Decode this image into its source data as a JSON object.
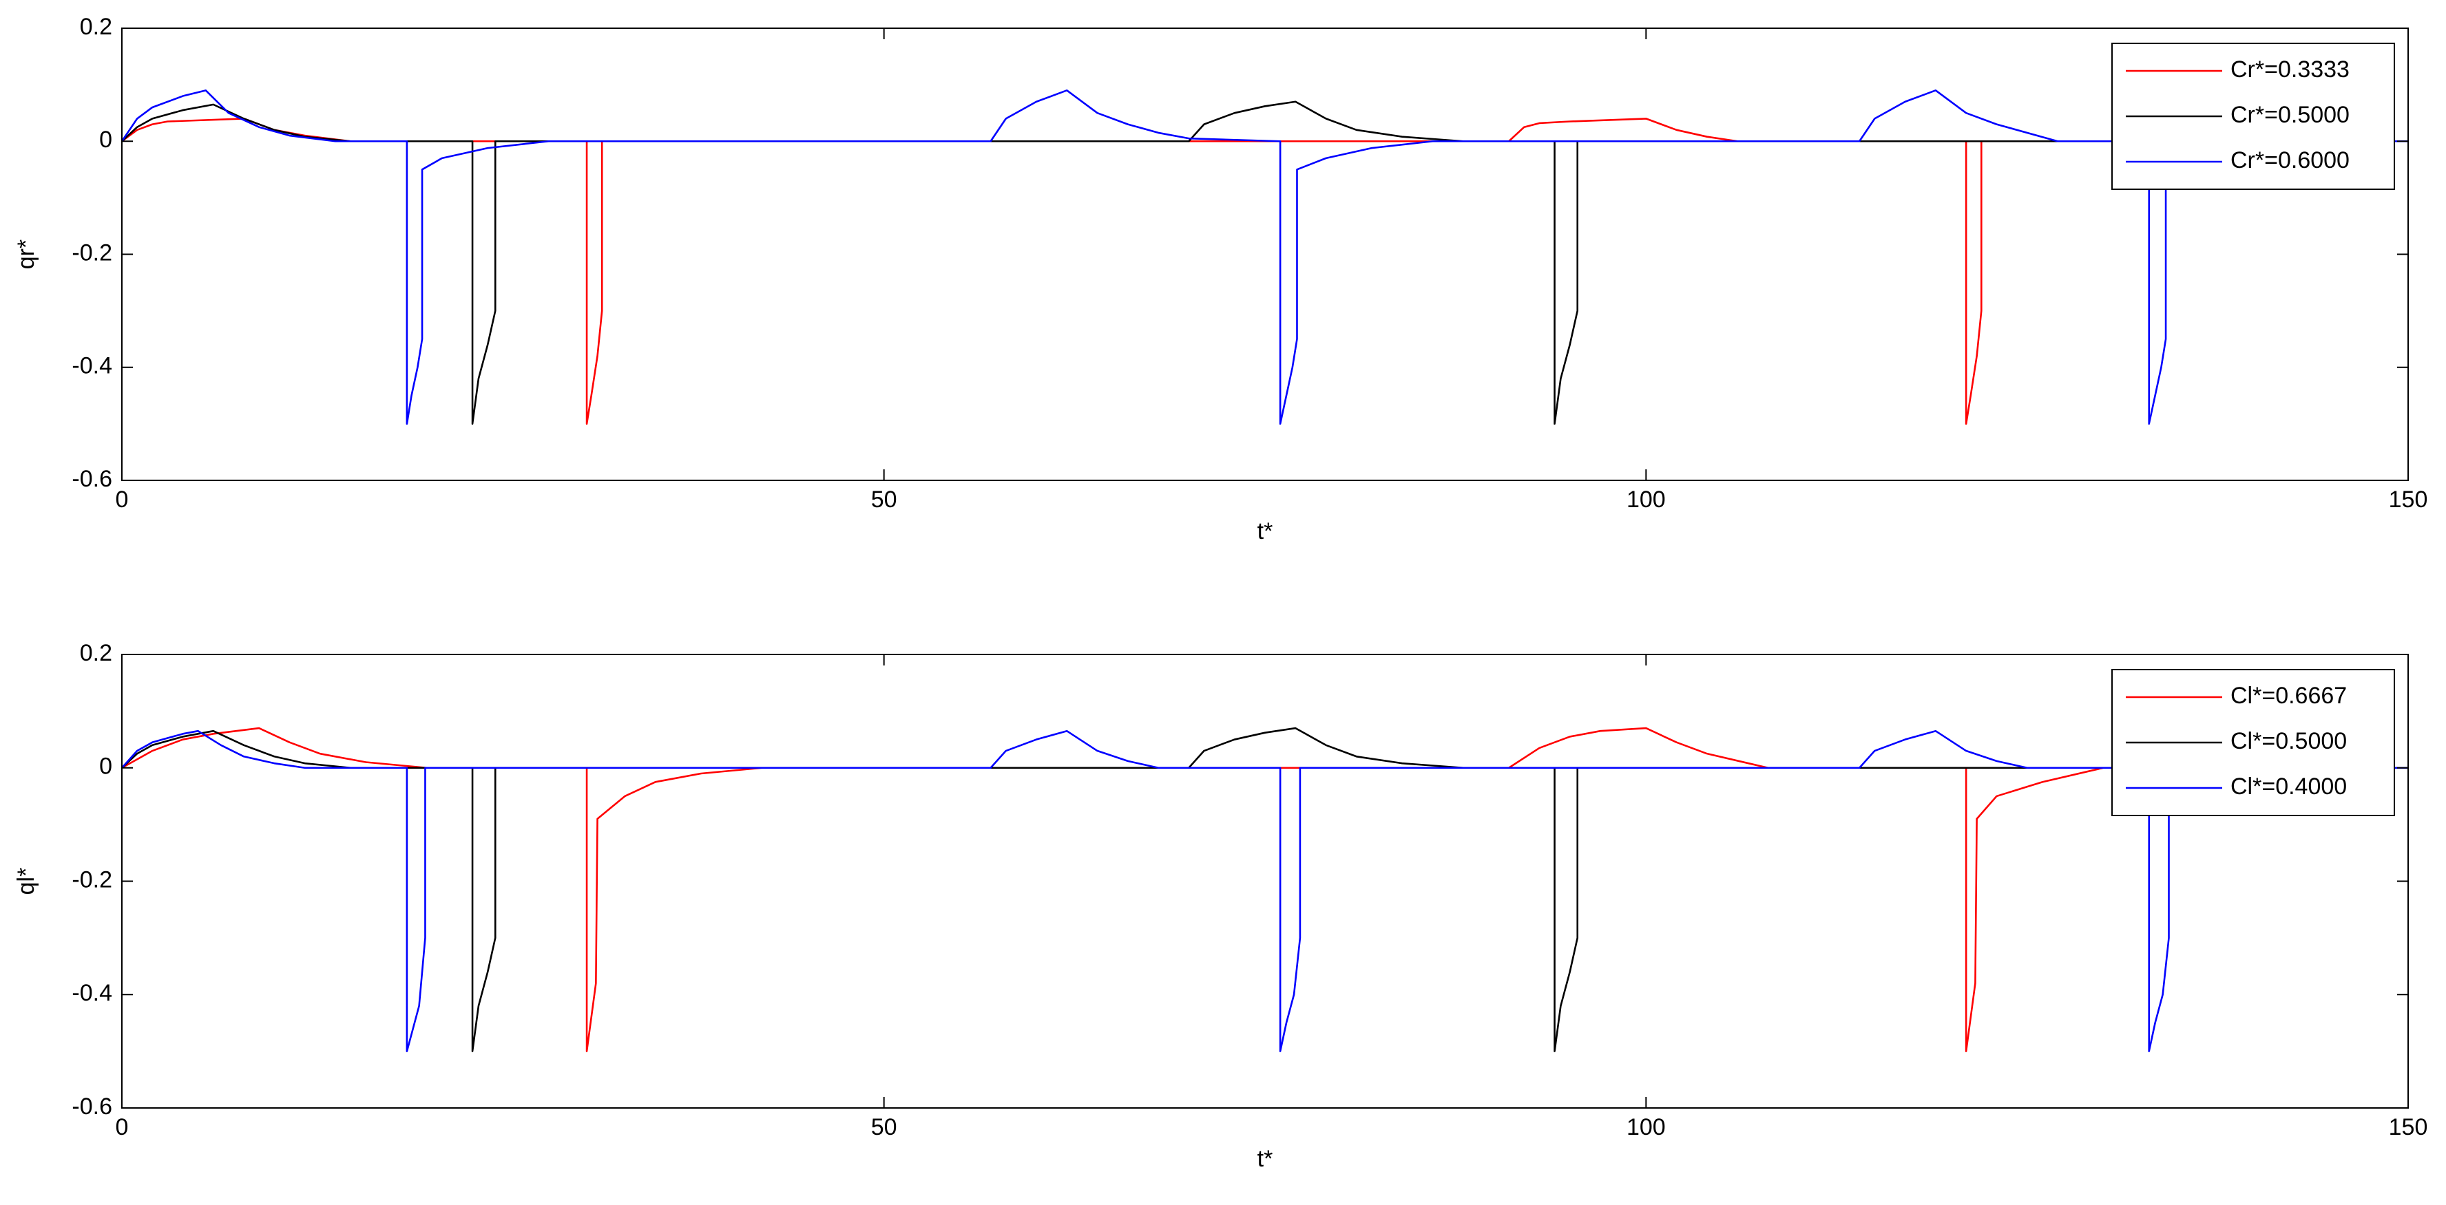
{
  "chart_data": [
    {
      "type": "line",
      "xlabel": "t*",
      "ylabel": "qr*",
      "xlim": [
        0,
        150
      ],
      "ylim": [
        -0.6,
        0.2
      ],
      "xticks": [
        0,
        50,
        100,
        150
      ],
      "yticks": [
        -0.6,
        -0.4,
        -0.2,
        0,
        0.2
      ],
      "legend": "northeast",
      "series": [
        {
          "name": "Cr*=0.3333",
          "color": "#ff0000",
          "x": [
            0,
            1,
            2,
            3,
            8,
            10,
            12,
            15,
            30.5,
            30.5,
            30.8,
            31.2,
            31.5,
            31.5,
            91,
            92,
            93,
            95,
            100,
            102,
            104,
            106,
            121,
            121,
            121.3,
            121.7,
            122,
            122,
            150
          ],
          "values": [
            0,
            0.02,
            0.03,
            0.035,
            0.04,
            0.02,
            0.01,
            0,
            0,
            -0.5,
            -0.45,
            -0.38,
            -0.3,
            0,
            0,
            0.025,
            0.032,
            0.035,
            0.04,
            0.02,
            0.008,
            0,
            0,
            -0.5,
            -0.45,
            -0.38,
            -0.3,
            0,
            0
          ]
        },
        {
          "name": "Cr*=0.5000",
          "color": "#000000",
          "x": [
            0,
            1,
            2,
            4,
            6,
            8,
            10,
            12,
            15,
            23,
            23,
            23.4,
            24,
            24.5,
            24.5,
            27,
            70,
            71,
            73,
            75,
            77,
            79,
            81,
            84,
            88,
            94,
            94,
            94.4,
            95,
            95.5,
            95.5,
            150
          ],
          "values": [
            0,
            0.025,
            0.04,
            0.055,
            0.065,
            0.04,
            0.02,
            0.008,
            0,
            0,
            -0.5,
            -0.42,
            -0.36,
            -0.3,
            0,
            0,
            0,
            0.03,
            0.05,
            0.062,
            0.07,
            0.04,
            0.02,
            0.008,
            0,
            0,
            -0.5,
            -0.42,
            -0.36,
            -0.3,
            0,
            0
          ]
        },
        {
          "name": "Cr*=0.6000",
          "color": "#0000ff",
          "x": [
            0,
            1,
            2,
            4,
            5.5,
            7,
            9,
            11,
            14,
            18.7,
            18.7,
            19,
            19.4,
            19.7,
            19.7,
            21,
            24,
            28,
            57,
            58,
            60,
            62,
            64,
            66,
            68,
            70,
            76,
            76,
            76.4,
            76.8,
            77.1,
            77.1,
            79,
            82,
            86,
            114,
            115,
            117,
            119,
            121,
            123,
            127,
            133,
            133,
            133.4,
            133.8,
            134.1,
            134.1,
            150
          ],
          "values": [
            0,
            0.04,
            0.06,
            0.08,
            0.09,
            0.05,
            0.025,
            0.01,
            0,
            0,
            -0.5,
            -0.45,
            -0.4,
            -0.35,
            -0.05,
            -0.03,
            -0.012,
            0,
            0,
            0.04,
            0.07,
            0.09,
            0.05,
            0.03,
            0.015,
            0.005,
            0,
            -0.5,
            -0.45,
            -0.4,
            -0.35,
            -0.05,
            -0.03,
            -0.012,
            0,
            0,
            0.04,
            0.07,
            0.09,
            0.05,
            0.03,
            0,
            0,
            -0.5,
            -0.45,
            -0.4,
            -0.35,
            0,
            0
          ]
        }
      ]
    },
    {
      "type": "line",
      "xlabel": "t*",
      "ylabel": "ql*",
      "xlim": [
        0,
        150
      ],
      "ylim": [
        -0.6,
        0.2
      ],
      "xticks": [
        0,
        50,
        100,
        150
      ],
      "yticks": [
        -0.6,
        -0.4,
        -0.2,
        0,
        0.2
      ],
      "legend": "northeast",
      "series": [
        {
          "name": "Cl*=0.6667",
          "color": "#ff0000",
          "x": [
            0,
            2,
            4,
            6,
            9,
            11,
            13,
            16,
            20,
            30.5,
            30.5,
            30.8,
            31.1,
            31.2,
            33,
            35,
            38,
            42,
            91,
            93,
            95,
            97,
            100,
            102,
            104,
            108,
            121,
            121,
            121.3,
            121.6,
            121.7,
            123,
            126,
            130,
            150
          ],
          "values": [
            0,
            0.03,
            0.05,
            0.06,
            0.07,
            0.045,
            0.025,
            0.01,
            0,
            0,
            -0.5,
            -0.44,
            -0.38,
            -0.09,
            -0.05,
            -0.025,
            -0.01,
            0,
            0,
            0.035,
            0.055,
            0.065,
            0.07,
            0.045,
            0.025,
            0,
            0,
            -0.5,
            -0.44,
            -0.38,
            -0.09,
            -0.05,
            -0.025,
            0,
            0
          ]
        },
        {
          "name": "Cl*=0.5000",
          "color": "#000000",
          "x": [
            0,
            1,
            2,
            4,
            6,
            8,
            10,
            12,
            15,
            23,
            23,
            23.4,
            24,
            24.5,
            24.5,
            27,
            70,
            71,
            73,
            75,
            77,
            79,
            81,
            84,
            88,
            94,
            94,
            94.4,
            95,
            95.5,
            95.5,
            150
          ],
          "values": [
            0,
            0.025,
            0.04,
            0.055,
            0.065,
            0.04,
            0.02,
            0.008,
            0,
            0,
            -0.5,
            -0.42,
            -0.36,
            -0.3,
            0,
            0,
            0,
            0.03,
            0.05,
            0.062,
            0.07,
            0.04,
            0.02,
            0.008,
            0,
            0,
            -0.5,
            -0.42,
            -0.36,
            -0.3,
            0,
            0
          ]
        },
        {
          "name": "Cl*=0.4000",
          "color": "#0000ff",
          "x": [
            0,
            1,
            2,
            4,
            5,
            6.5,
            8,
            10,
            12,
            18.7,
            18.7,
            19,
            19.5,
            19.9,
            19.9,
            57,
            58,
            60,
            62,
            64,
            66,
            68,
            76,
            76,
            76.4,
            76.9,
            77.3,
            77.3,
            114,
            115,
            117,
            119,
            121,
            123,
            125,
            133,
            133,
            133.4,
            133.9,
            134.3,
            134.3,
            150
          ],
          "values": [
            0,
            0.03,
            0.045,
            0.06,
            0.065,
            0.04,
            0.02,
            0.008,
            0,
            0,
            -0.5,
            -0.47,
            -0.42,
            -0.3,
            0,
            0,
            0.03,
            0.05,
            0.065,
            0.03,
            0.012,
            0,
            0,
            -0.5,
            -0.45,
            -0.4,
            -0.3,
            0,
            0,
            0.03,
            0.05,
            0.065,
            0.03,
            0.012,
            0,
            0,
            -0.5,
            -0.45,
            -0.4,
            -0.3,
            0,
            0
          ]
        }
      ]
    }
  ]
}
